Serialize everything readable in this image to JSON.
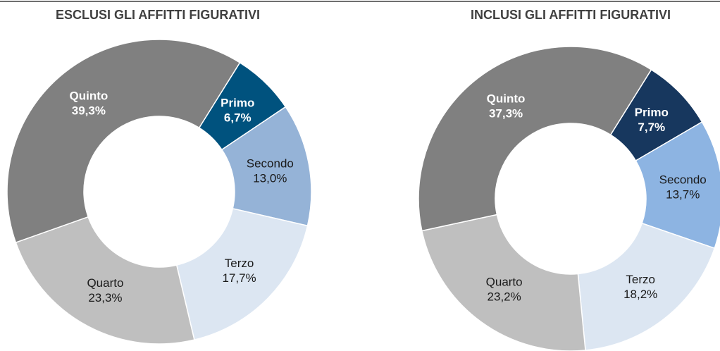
{
  "chart_data": [
    {
      "type": "donut",
      "title": "ESCLUSI GLI AFFITTI FIGURATIVI",
      "categories": [
        "Primo",
        "Secondo",
        "Terzo",
        "Quarto",
        "Quinto"
      ],
      "values": [
        6.7,
        13.0,
        17.7,
        23.3,
        39.3
      ],
      "value_labels": [
        "6,7%",
        "13,0%",
        "17,7%",
        "23,3%",
        "39,3%"
      ],
      "colors": [
        "#00527e",
        "#95b3d7",
        "#dce6f2",
        "#bfbfbf",
        "#808080"
      ]
    },
    {
      "type": "donut",
      "title": "INCLUSI GLI AFFITTI FIGURATIVI",
      "categories": [
        "Primo",
        "Secondo",
        "Terzo",
        "Quarto",
        "Quinto"
      ],
      "values": [
        7.7,
        13.7,
        18.2,
        23.2,
        37.3
      ],
      "value_labels": [
        "7,7%",
        "13,7%",
        "18,2%",
        "23,2%",
        "37,3%"
      ],
      "colors": [
        "#17375e",
        "#8db4e2",
        "#dce6f2",
        "#bfbfbf",
        "#808080"
      ]
    }
  ]
}
